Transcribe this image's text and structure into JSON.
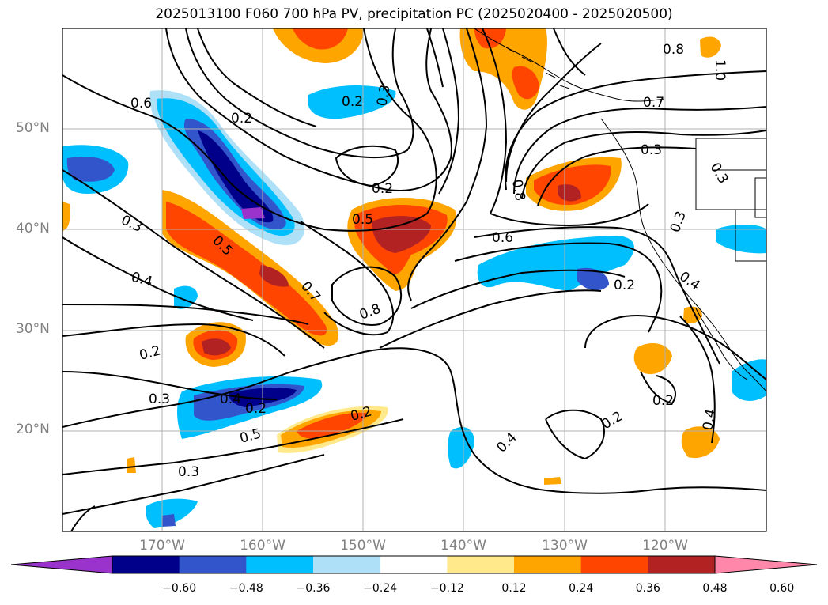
{
  "title": "2025013100 F060 700 hPa PV, precipitation PC (2025020400 - 2025020500)",
  "map": {
    "lon_range": [
      -178,
      -108
    ],
    "lat_range": [
      10,
      60
    ],
    "lat_labels": [
      "20°N",
      "30°N",
      "40°N",
      "50°N"
    ],
    "lon_labels": [
      "170°W",
      "160°W",
      "150°W",
      "140°W",
      "130°W",
      "120°W"
    ],
    "contour_labels": [
      "0.6",
      "0.2",
      "0.3",
      "0.2",
      "0.8",
      "1.0",
      "0.7",
      "0.3",
      "0.3",
      "0.8",
      "0.2",
      "0.5",
      "0.3",
      "0.4",
      "0.5",
      "0.7",
      "0.6",
      "0.3",
      "0.4",
      "0.8",
      "0.2",
      "0.2",
      "0.3",
      "0.4",
      "0.5",
      "0.3",
      "0.2",
      "0.4",
      "0.2",
      "0.2",
      "0.4",
      "0.2"
    ]
  },
  "colorbar": {
    "ticks": [
      "−0.60",
      "−0.48",
      "−0.36",
      "−0.24",
      "−0.12",
      "0.12",
      "0.24",
      "0.36",
      "0.48",
      "0.60"
    ],
    "colors": [
      "#9933cc",
      "#00008b",
      "#3355cc",
      "#00bfff",
      "#aee0f8",
      "#ffffff",
      "#ffe98a",
      "#ffa500",
      "#ff4500",
      "#b22222",
      "#ff88aa"
    ]
  }
}
